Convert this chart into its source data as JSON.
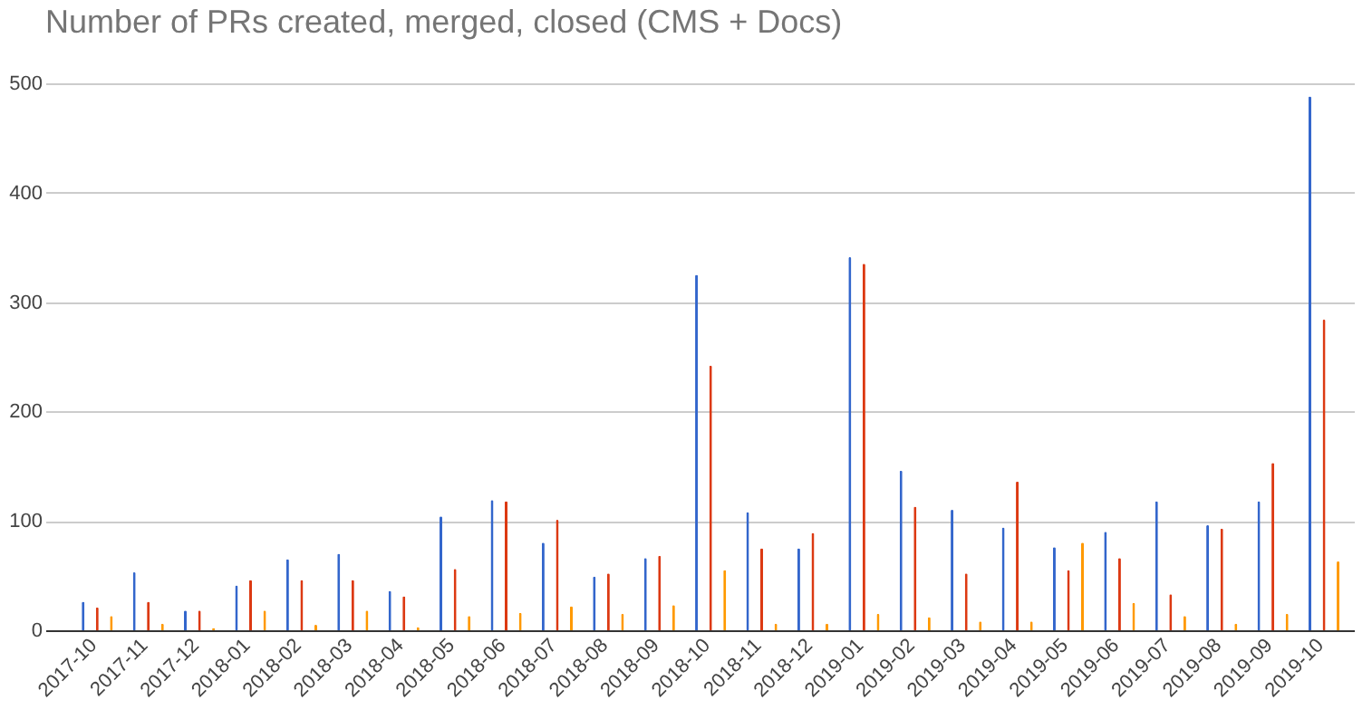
{
  "chart_data": {
    "type": "bar",
    "title": "Number of PRs created, merged, closed (CMS + Docs)",
    "categories": [
      "2017-10",
      "2017-11",
      "2017-12",
      "2018-01",
      "2018-02",
      "2018-03",
      "2018-04",
      "2018-05",
      "2018-06",
      "2018-07",
      "2018-08",
      "2018-09",
      "2018-10",
      "2018-11",
      "2018-12",
      "2019-01",
      "2019-02",
      "2019-03",
      "2019-04",
      "2019-05",
      "2019-06",
      "2019-07",
      "2019-08",
      "2019-09",
      "2019-10"
    ],
    "series": [
      {
        "color": "#3366cc",
        "values": [
          26,
          53,
          18,
          41,
          65,
          70,
          36,
          104,
          119,
          80,
          49,
          66,
          325,
          108,
          75,
          341,
          146,
          110,
          94,
          76,
          90,
          118,
          96,
          118,
          488
        ]
      },
      {
        "color": "#dc3912",
        "values": [
          21,
          26,
          18,
          46,
          46,
          46,
          31,
          56,
          118,
          101,
          52,
          68,
          242,
          75,
          89,
          335,
          113,
          52,
          136,
          55,
          66,
          33,
          93,
          153,
          284
        ]
      },
      {
        "color": "#ff9900",
        "values": [
          13,
          6,
          2,
          18,
          5,
          18,
          3,
          13,
          16,
          22,
          15,
          23,
          55,
          6,
          6,
          15,
          12,
          8,
          8,
          80,
          25,
          13,
          6,
          15,
          63
        ]
      }
    ],
    "ylim": [
      0,
      500
    ],
    "yticks": [
      0,
      100,
      200,
      300,
      400,
      500
    ],
    "grid": "y",
    "legend": false
  }
}
